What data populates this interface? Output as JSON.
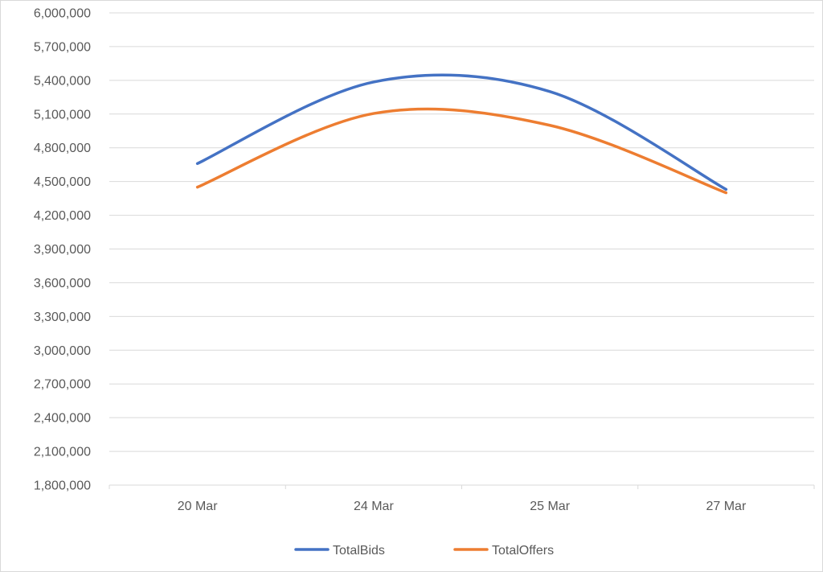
{
  "chart_data": {
    "type": "line",
    "smooth": true,
    "title": "",
    "xlabel": "",
    "ylabel": "",
    "categories": [
      "20 Mar",
      "24 Mar",
      "25 Mar",
      "27 Mar"
    ],
    "ylim": [
      1800000,
      6000000
    ],
    "yticks": [
      1800000,
      2100000,
      2400000,
      2700000,
      3000000,
      3300000,
      3600000,
      3900000,
      4200000,
      4500000,
      4800000,
      5100000,
      5400000,
      5700000,
      6000000
    ],
    "ytick_labels": [
      "1,800,000",
      "2,100,000",
      "2,400,000",
      "2,700,000",
      "3,000,000",
      "3,300,000",
      "3,600,000",
      "3,900,000",
      "4,200,000",
      "4,500,000",
      "4,800,000",
      "5,100,000",
      "5,400,000",
      "5,700,000",
      "6,000,000"
    ],
    "grid": true,
    "legend_position": "bottom",
    "series": [
      {
        "name": "TotalBids",
        "color": "#4472c4",
        "values": [
          4660000,
          5385000,
          5300000,
          4430000
        ]
      },
      {
        "name": "TotalOffers",
        "color": "#ed7d31",
        "values": [
          4450000,
          5105000,
          5000000,
          4400000
        ]
      }
    ]
  }
}
